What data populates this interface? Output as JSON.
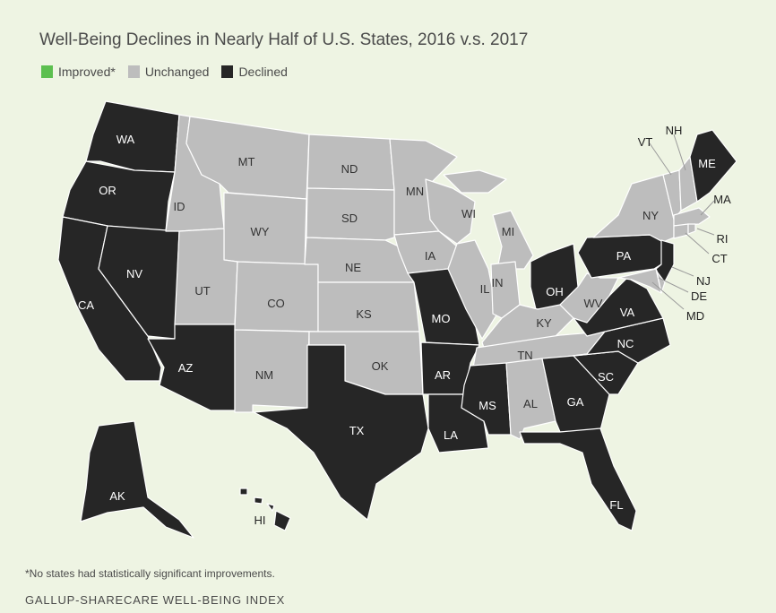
{
  "title": "Well-Being Declines in Nearly Half of U.S. States, 2016 v.s. 2017",
  "legend": [
    {
      "label": "Improved*",
      "status": "improved"
    },
    {
      "label": "Unchanged",
      "status": "unchanged"
    },
    {
      "label": "Declined",
      "status": "declined"
    }
  ],
  "colors": {
    "improved": "#5cbf4f",
    "unchanged": "#bdbdbd",
    "declined": "#262626",
    "background": "#eef4e3"
  },
  "states": [
    {
      "abbr": "WA",
      "status": "declined"
    },
    {
      "abbr": "OR",
      "status": "declined"
    },
    {
      "abbr": "CA",
      "status": "declined"
    },
    {
      "abbr": "NV",
      "status": "declined"
    },
    {
      "abbr": "ID",
      "status": "unchanged"
    },
    {
      "abbr": "MT",
      "status": "unchanged"
    },
    {
      "abbr": "WY",
      "status": "unchanged"
    },
    {
      "abbr": "UT",
      "status": "unchanged"
    },
    {
      "abbr": "AZ",
      "status": "declined"
    },
    {
      "abbr": "CO",
      "status": "unchanged"
    },
    {
      "abbr": "NM",
      "status": "unchanged"
    },
    {
      "abbr": "ND",
      "status": "unchanged"
    },
    {
      "abbr": "SD",
      "status": "unchanged"
    },
    {
      "abbr": "NE",
      "status": "unchanged"
    },
    {
      "abbr": "KS",
      "status": "unchanged"
    },
    {
      "abbr": "OK",
      "status": "unchanged"
    },
    {
      "abbr": "TX",
      "status": "declined"
    },
    {
      "abbr": "MN",
      "status": "unchanged"
    },
    {
      "abbr": "IA",
      "status": "unchanged"
    },
    {
      "abbr": "MO",
      "status": "declined"
    },
    {
      "abbr": "AR",
      "status": "declined"
    },
    {
      "abbr": "LA",
      "status": "declined"
    },
    {
      "abbr": "WI",
      "status": "unchanged"
    },
    {
      "abbr": "MI",
      "status": "unchanged"
    },
    {
      "abbr": "IL",
      "status": "unchanged"
    },
    {
      "abbr": "IN",
      "status": "unchanged"
    },
    {
      "abbr": "OH",
      "status": "declined"
    },
    {
      "abbr": "KY",
      "status": "unchanged"
    },
    {
      "abbr": "TN",
      "status": "unchanged"
    },
    {
      "abbr": "MS",
      "status": "declined"
    },
    {
      "abbr": "AL",
      "status": "unchanged"
    },
    {
      "abbr": "GA",
      "status": "declined"
    },
    {
      "abbr": "FL",
      "status": "declined"
    },
    {
      "abbr": "SC",
      "status": "declined"
    },
    {
      "abbr": "NC",
      "status": "declined"
    },
    {
      "abbr": "VA",
      "status": "declined"
    },
    {
      "abbr": "WV",
      "status": "unchanged"
    },
    {
      "abbr": "PA",
      "status": "declined"
    },
    {
      "abbr": "NY",
      "status": "unchanged"
    },
    {
      "abbr": "NJ",
      "status": "declined"
    },
    {
      "abbr": "DE",
      "status": "unchanged"
    },
    {
      "abbr": "MD",
      "status": "unchanged"
    },
    {
      "abbr": "VT",
      "status": "unchanged"
    },
    {
      "abbr": "NH",
      "status": "unchanged"
    },
    {
      "abbr": "ME",
      "status": "declined"
    },
    {
      "abbr": "MA",
      "status": "unchanged"
    },
    {
      "abbr": "CT",
      "status": "unchanged"
    },
    {
      "abbr": "RI",
      "status": "unchanged"
    },
    {
      "abbr": "AK",
      "status": "declined"
    },
    {
      "abbr": "HI",
      "status": "declined"
    }
  ],
  "footnote": "*No states had statistically significant improvements.",
  "source": "GALLUP-SHARECARE WELL-BEING INDEX"
}
